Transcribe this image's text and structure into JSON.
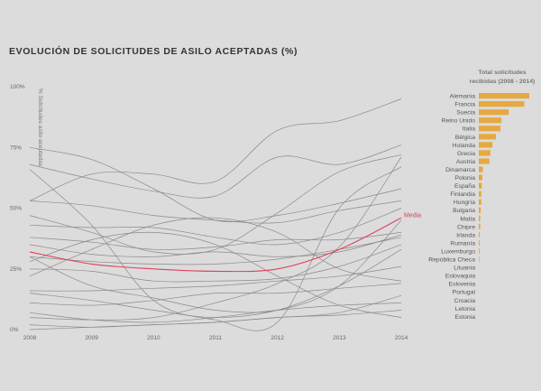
{
  "title": "EVOLUCIÓN DE SOLICITUDES DE ASILO ACEPTADAS (%)",
  "colors": {
    "background": "#dcdcdc",
    "lines": "#8a8a8a",
    "mean": "#e0405a",
    "bars": "#e6a940"
  },
  "chart_data": [
    {
      "type": "line",
      "title": "EVOLUCIÓN DE SOLICITUDES DE ASILO ACEPTADAS (%)",
      "ylabel": "% Solicitudes asilo aceptadas",
      "x": [
        "2008",
        "2009",
        "2010",
        "2011",
        "2012",
        "2013",
        "2014"
      ],
      "y_ticks": [
        "0%",
        "25%",
        "50%",
        "75%",
        "100%"
      ],
      "ylim": [
        0,
        100
      ],
      "grid": false,
      "series": [
        {
          "values": [
            53,
            64,
            64,
            61,
            82,
            86,
            95
          ]
        },
        {
          "values": [
            68,
            62,
            57,
            55,
            71,
            68,
            76
          ]
        },
        {
          "values": [
            47,
            40,
            32,
            33,
            48,
            65,
            72
          ]
        },
        {
          "values": [
            75,
            70,
            58,
            45,
            47,
            52,
            58
          ]
        },
        {
          "values": [
            53,
            51,
            47,
            45,
            44,
            49,
            53
          ]
        },
        {
          "values": [
            43,
            42,
            42,
            38,
            35,
            40,
            50
          ]
        },
        {
          "values": [
            38,
            36,
            33,
            34,
            37,
            37,
            40
          ]
        },
        {
          "values": [
            35,
            31,
            30,
            32,
            30,
            32,
            39
          ]
        },
        {
          "values": [
            30,
            28,
            27,
            27,
            29,
            33,
            38
          ]
        },
        {
          "values": [
            22,
            33,
            43,
            46,
            40,
            25,
            20
          ]
        },
        {
          "values": [
            28,
            37,
            40,
            35,
            22,
            10,
            5
          ]
        },
        {
          "values": [
            30,
            18,
            13,
            8,
            8,
            18,
            45
          ]
        },
        {
          "values": [
            25,
            24,
            20,
            20,
            21,
            26,
            35
          ]
        },
        {
          "values": [
            16,
            16,
            17,
            18,
            20,
            22,
            26
          ]
        },
        {
          "values": [
            15,
            12,
            8,
            5,
            8,
            18,
            33
          ]
        },
        {
          "values": [
            11,
            10,
            12,
            15,
            15,
            17,
            19
          ]
        },
        {
          "values": [
            7,
            4,
            3,
            5,
            8,
            10,
            11
          ]
        },
        {
          "values": [
            5,
            4,
            5,
            11,
            19,
            34,
            71
          ]
        },
        {
          "values": [
            2,
            1,
            2,
            3,
            5,
            7,
            14
          ]
        },
        {
          "values": [
            0,
            1,
            2,
            3,
            5,
            6,
            8
          ]
        },
        {
          "values": [
            66,
            43,
            12,
            4,
            3,
            50,
            67
          ]
        }
      ],
      "mean": {
        "name": "Media",
        "values": [
          32,
          27,
          25,
          24,
          25,
          33,
          46
        ]
      }
    },
    {
      "type": "bar",
      "title": "Total solicitudes recibidas (2008 - 2014)",
      "title_lines": [
        "Total solicitudes",
        "recibidas (2008 - 2014)"
      ],
      "orientation": "horizontal",
      "categories": [
        "Alemania",
        "Francia",
        "Suecia",
        "Reino Unido",
        "Italia",
        "Bélgica",
        "Holanda",
        "Grecia",
        "Austria",
        "Dinamarca",
        "Polonia",
        "España",
        "Finlandia",
        "Hungría",
        "Bulgaria",
        "Malta",
        "Chipre",
        "Irlanda",
        "Rumanía",
        "Luxemburgo",
        "República Checa",
        "Lituania",
        "Eslovaquia",
        "Eslovenia",
        "Portugal",
        "Croacia",
        "Letonia",
        "Estonia"
      ],
      "values": [
        100,
        90,
        59,
        45,
        43,
        34,
        27,
        23,
        21,
        8,
        7,
        6,
        5,
        5,
        4,
        3,
        3,
        2,
        2,
        1.5,
        1,
        0,
        0,
        0,
        0,
        0,
        0,
        0
      ],
      "xlim": [
        0,
        100
      ]
    }
  ]
}
